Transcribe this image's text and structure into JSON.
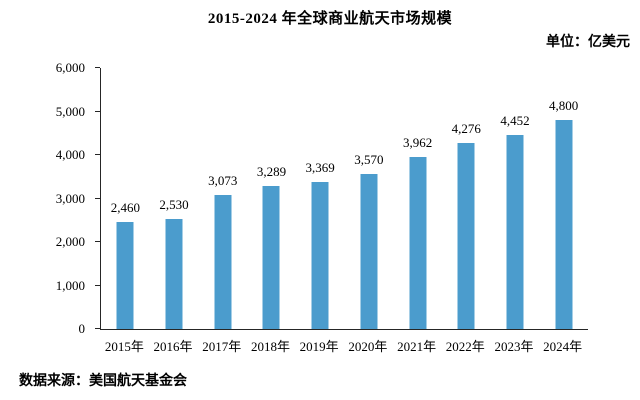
{
  "header": {
    "title": "2015-2024 年全球商业航天市场规模",
    "unit_label": "单位：亿美元"
  },
  "footer": {
    "source": "数据来源：美国航天基金会"
  },
  "chart_data": {
    "type": "bar",
    "title": "2015-2024 年全球商业航天市场规模",
    "xlabel": "",
    "ylabel": "单位：亿美元",
    "categories": [
      "2015年",
      "2016年",
      "2017年",
      "2018年",
      "2019年",
      "2020年",
      "2021年",
      "2022年",
      "2023年",
      "2024年"
    ],
    "values": [
      2460,
      2530,
      3073,
      3289,
      3369,
      3570,
      3962,
      4276,
      4452,
      4800
    ],
    "value_labels": [
      "2,460",
      "2,530",
      "3,073",
      "3,289",
      "3,369",
      "3,570",
      "3,962",
      "4,276",
      "4,452",
      "4,800"
    ],
    "ylim": [
      0,
      6000
    ],
    "yticks": [
      0,
      1000,
      2000,
      3000,
      4000,
      5000,
      6000
    ],
    "ytick_labels": [
      "0",
      "1,000",
      "2,000",
      "3,000",
      "4,000",
      "5,000",
      "6,000"
    ],
    "grid": false,
    "legend_position": "none",
    "bar_color": "#4B9CCD",
    "axis_color": "#262626",
    "text_color": "#000000"
  }
}
